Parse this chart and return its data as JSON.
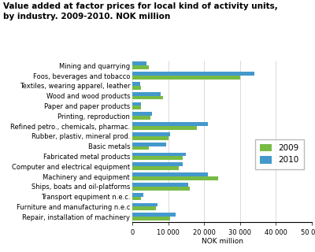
{
  "title_line1": "Value added at factor prices for local kind of activity units,",
  "title_line2": "by industry. 2009-2010. NOK million",
  "categories": [
    "Mining and quarrying",
    "Foos, beverages and tobacco",
    "Textiles, wearing apparel, leather",
    "Wood and wood products",
    "Paper and paper products",
    "Printing, reproduction",
    "Refined petro., chemicals, pharmac.",
    "Rubber, plastiv, mineral prod.",
    "Basic metals",
    "Fabricated metal products",
    "Computer and electrical equipment",
    "Machinery and equipment",
    "Ships, boats and oil-platforms",
    "Transport equpiment n.e.c.",
    "Furniture and manufacturing n.e.c",
    "Repair, installation of machinery"
  ],
  "values_2009": [
    4500,
    30000,
    2500,
    8500,
    2500,
    5000,
    18000,
    10000,
    4500,
    14000,
    13000,
    24000,
    16000,
    2500,
    6500,
    10500
  ],
  "values_2010": [
    4000,
    34000,
    2200,
    8000,
    2500,
    5500,
    21000,
    10500,
    9500,
    15000,
    14000,
    21000,
    15500,
    3000,
    7000,
    12000
  ],
  "color_2009": "#77bb44",
  "color_2010": "#4499cc",
  "xlabel": "NOK million",
  "xlim": [
    0,
    50000
  ],
  "xticks": [
    0,
    10000,
    20000,
    30000,
    40000,
    50000
  ],
  "xtick_labels": [
    "0",
    "10 000",
    "20 000",
    "30 000",
    "40 000",
    "50 000"
  ],
  "legend_labels": [
    "2009",
    "2010"
  ],
  "bar_height": 0.38,
  "title_fontsize": 7.5,
  "label_fontsize": 6.5,
  "tick_fontsize": 6.0,
  "legend_fontsize": 7.5,
  "bg_color": "#ffffff"
}
